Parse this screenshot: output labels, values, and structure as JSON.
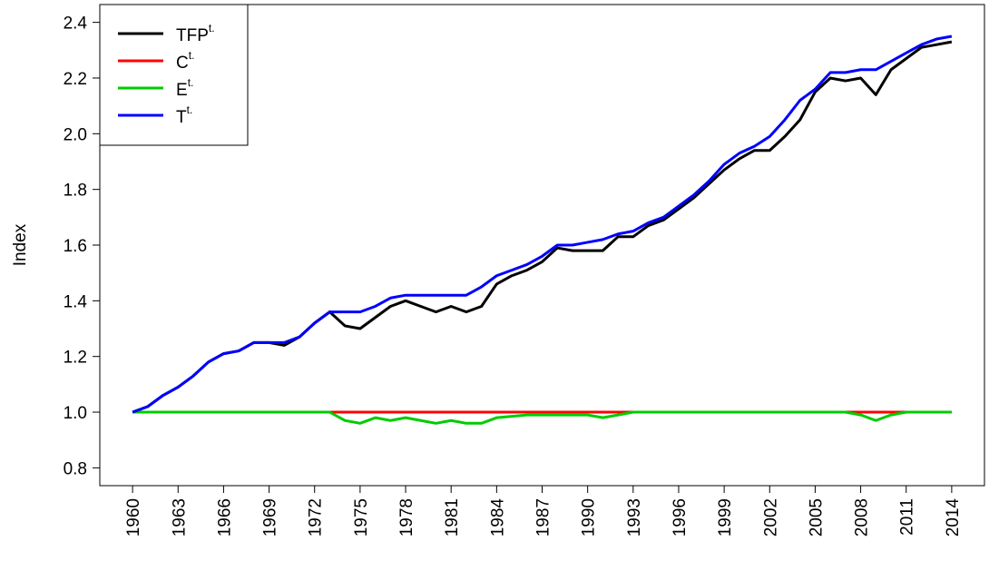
{
  "chart_data": {
    "type": "line",
    "y_label": "Index",
    "legend_superscript": "t.",
    "x": [
      1960,
      1961,
      1962,
      1963,
      1964,
      1965,
      1966,
      1967,
      1968,
      1969,
      1970,
      1971,
      1972,
      1973,
      1974,
      1975,
      1976,
      1977,
      1978,
      1979,
      1980,
      1981,
      1982,
      1983,
      1984,
      1985,
      1986,
      1987,
      1988,
      1989,
      1990,
      1991,
      1992,
      1993,
      1994,
      1995,
      1996,
      1997,
      1998,
      1999,
      2000,
      2001,
      2002,
      2003,
      2004,
      2005,
      2006,
      2007,
      2008,
      2009,
      2010,
      2011,
      2012,
      2013,
      2014
    ],
    "xlim": [
      1957.84,
      2016.16
    ],
    "xticks": [
      1960,
      1963,
      1966,
      1969,
      1972,
      1975,
      1978,
      1981,
      1984,
      1987,
      1990,
      1993,
      1996,
      1999,
      2002,
      2005,
      2008,
      2011,
      2014
    ],
    "ylim": [
      0.736,
      2.464
    ],
    "yticks": [
      {
        "value": 0.8,
        "label": "0.8"
      },
      {
        "value": 1.0,
        "label": "1.0"
      },
      {
        "value": 1.2,
        "label": "1.2"
      },
      {
        "value": 1.4,
        "label": "1.4"
      },
      {
        "value": 1.6,
        "label": "1.6"
      },
      {
        "value": 1.8,
        "label": "1.8"
      },
      {
        "value": 2.0,
        "label": "2.0"
      },
      {
        "value": 2.2,
        "label": "2.2"
      },
      {
        "value": 2.4,
        "label": "2.4"
      }
    ],
    "legend": "top-left",
    "series": [
      {
        "name": "TFP",
        "color": "#000000",
        "values": [
          1.0,
          1.02,
          1.06,
          1.09,
          1.13,
          1.18,
          1.21,
          1.22,
          1.25,
          1.25,
          1.24,
          1.27,
          1.32,
          1.36,
          1.31,
          1.3,
          1.34,
          1.38,
          1.4,
          1.38,
          1.36,
          1.38,
          1.36,
          1.38,
          1.46,
          1.49,
          1.51,
          1.54,
          1.59,
          1.58,
          1.58,
          1.58,
          1.63,
          1.63,
          1.67,
          1.69,
          1.73,
          1.77,
          1.82,
          1.87,
          1.91,
          1.94,
          1.94,
          1.99,
          2.05,
          2.15,
          2.2,
          2.19,
          2.2,
          2.14,
          2.23,
          2.27,
          2.31,
          2.32,
          2.33
        ]
      },
      {
        "name": "C",
        "color": "#ff0000",
        "values": [
          1,
          1,
          1,
          1,
          1,
          1,
          1,
          1,
          1,
          1,
          1,
          1,
          1,
          1,
          1,
          1,
          1,
          1,
          1,
          1,
          1,
          1,
          1,
          1,
          1,
          1,
          1,
          1,
          1,
          1,
          1,
          1,
          1,
          1,
          1,
          1,
          1,
          1,
          1,
          1,
          1,
          1,
          1,
          1,
          1,
          1,
          1,
          1,
          1,
          1,
          1,
          1,
          1,
          1,
          1
        ]
      },
      {
        "name": "E",
        "color": "#00cc00",
        "values": [
          1,
          1,
          1,
          1,
          1,
          1,
          1,
          1,
          1,
          1,
          1,
          1,
          1,
          1,
          0.97,
          0.96,
          0.98,
          0.97,
          0.98,
          0.97,
          0.96,
          0.97,
          0.96,
          0.96,
          0.98,
          0.985,
          0.99,
          0.99,
          0.99,
          0.99,
          0.99,
          0.98,
          0.99,
          1,
          1,
          1,
          1,
          1,
          1,
          1,
          1,
          1,
          1,
          1,
          1,
          1,
          1,
          1,
          0.99,
          0.97,
          0.99,
          1,
          1,
          1,
          1
        ]
      },
      {
        "name": "T",
        "color": "#0000ff",
        "values": [
          1.0,
          1.02,
          1.06,
          1.09,
          1.13,
          1.18,
          1.21,
          1.22,
          1.25,
          1.25,
          1.25,
          1.27,
          1.32,
          1.36,
          1.36,
          1.36,
          1.38,
          1.41,
          1.42,
          1.42,
          1.42,
          1.42,
          1.42,
          1.45,
          1.49,
          1.51,
          1.53,
          1.56,
          1.6,
          1.6,
          1.61,
          1.62,
          1.64,
          1.65,
          1.68,
          1.7,
          1.74,
          1.78,
          1.83,
          1.89,
          1.93,
          1.955,
          1.99,
          2.05,
          2.12,
          2.16,
          2.22,
          2.22,
          2.23,
          2.23,
          2.26,
          2.29,
          2.32,
          2.34,
          2.35
        ]
      }
    ]
  }
}
